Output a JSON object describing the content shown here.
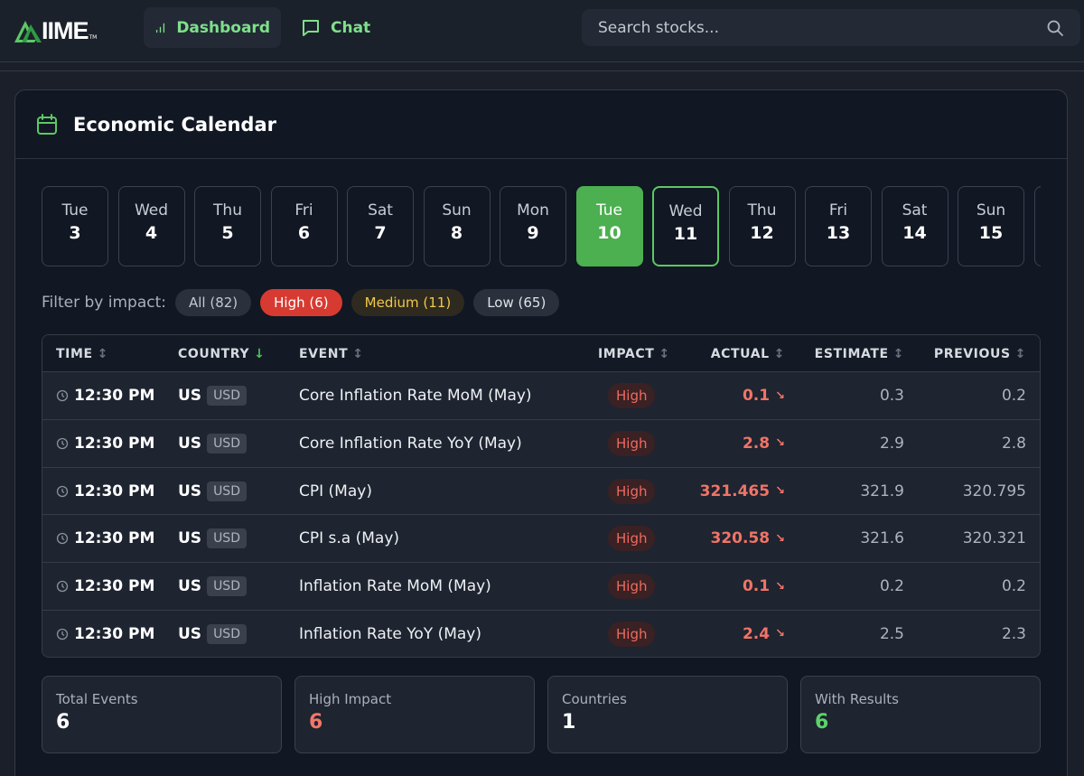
{
  "app": {
    "logo_text": "IIME",
    "logo_tm": "TM"
  },
  "nav": {
    "dashboard_label": "Dashboard",
    "chat_label": "Chat"
  },
  "search": {
    "placeholder": "Search stocks..."
  },
  "calendar": {
    "title": "Economic Calendar",
    "days": [
      {
        "name": "Tue",
        "num": "3"
      },
      {
        "name": "Wed",
        "num": "4"
      },
      {
        "name": "Thu",
        "num": "5"
      },
      {
        "name": "Fri",
        "num": "6"
      },
      {
        "name": "Sat",
        "num": "7"
      },
      {
        "name": "Sun",
        "num": "8"
      },
      {
        "name": "Mon",
        "num": "9"
      },
      {
        "name": "Tue",
        "num": "10"
      },
      {
        "name": "Wed",
        "num": "11"
      },
      {
        "name": "Thu",
        "num": "12"
      },
      {
        "name": "Fri",
        "num": "13"
      },
      {
        "name": "Sat",
        "num": "14"
      },
      {
        "name": "Sun",
        "num": "15"
      }
    ],
    "selected_day_index": 7,
    "today_day_index": 8
  },
  "filter": {
    "label": "Filter by impact:",
    "all": "All (82)",
    "high": "High (6)",
    "medium": "Medium (11)",
    "low": "Low (65)"
  },
  "table": {
    "headers": {
      "time": "TIME",
      "country": "COUNTRY",
      "event": "EVENT",
      "impact": "IMPACT",
      "actual": "ACTUAL",
      "estimate": "ESTIMATE",
      "previous": "PREVIOUS"
    },
    "rows": [
      {
        "time": "12:30 PM",
        "country": "US",
        "currency": "USD",
        "event": "Core Inflation Rate MoM (May)",
        "impact": "High",
        "actual": "0.1",
        "estimate": "0.3",
        "previous": "0.2"
      },
      {
        "time": "12:30 PM",
        "country": "US",
        "currency": "USD",
        "event": "Core Inflation Rate YoY (May)",
        "impact": "High",
        "actual": "2.8",
        "estimate": "2.9",
        "previous": "2.8"
      },
      {
        "time": "12:30 PM",
        "country": "US",
        "currency": "USD",
        "event": "CPI (May)",
        "impact": "High",
        "actual": "321.465",
        "estimate": "321.9",
        "previous": "320.795"
      },
      {
        "time": "12:30 PM",
        "country": "US",
        "currency": "USD",
        "event": "CPI s.a (May)",
        "impact": "High",
        "actual": "320.58",
        "estimate": "321.6",
        "previous": "320.321"
      },
      {
        "time": "12:30 PM",
        "country": "US",
        "currency": "USD",
        "event": "Inflation Rate MoM (May)",
        "impact": "High",
        "actual": "0.1",
        "estimate": "0.2",
        "previous": "0.2"
      },
      {
        "time": "12:30 PM",
        "country": "US",
        "currency": "USD",
        "event": "Inflation Rate YoY (May)",
        "impact": "High",
        "actual": "2.4",
        "estimate": "2.5",
        "previous": "2.3"
      }
    ]
  },
  "stats": {
    "total_events_label": "Total Events",
    "total_events_value": "6",
    "high_impact_label": "High Impact",
    "high_impact_value": "6",
    "countries_label": "Countries",
    "countries_value": "1",
    "with_results_label": "With Results",
    "with_results_value": "6"
  },
  "colors": {
    "accent_green": "#4caf50",
    "high_red": "#d73a31",
    "medium_yellow": "#f1c84b",
    "actual_red": "#f07467"
  }
}
